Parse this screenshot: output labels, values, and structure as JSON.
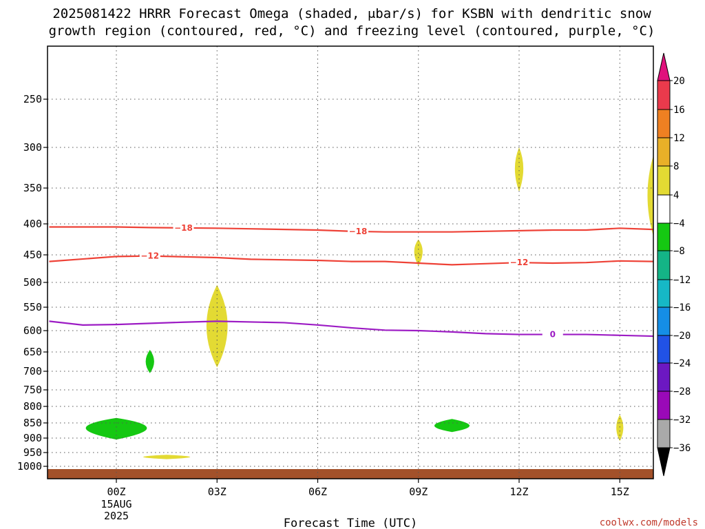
{
  "chart_data": {
    "type": "time-height cross section",
    "title_line1": "2025081422 HRRR Forecast Omega (shaded, μbar/s) for KSBN with dendritic snow",
    "title_line2": "growth region (contoured, red, °C) and freezing level (contoured, purple, °C)",
    "xlabel": "Forecast Time (UTC)",
    "credit": "coolwx.com/models",
    "y_ticks": [
      250,
      300,
      350,
      400,
      450,
      500,
      550,
      600,
      650,
      700,
      750,
      800,
      850,
      900,
      950,
      1000
    ],
    "x_ticks": [
      {
        "hour": 0,
        "label": "00Z",
        "sub1": "15AUG",
        "sub2": "2025"
      },
      {
        "hour": 3,
        "label": "03Z"
      },
      {
        "hour": 6,
        "label": "06Z"
      },
      {
        "hour": 9,
        "label": "09Z"
      },
      {
        "hour": 12,
        "label": "12Z"
      },
      {
        "hour": 15,
        "label": "15Z"
      }
    ],
    "xlim": [
      -2,
      16
    ],
    "ylim": [
      1040,
      200
    ],
    "grid": true,
    "colorbar": {
      "labels": [
        "20",
        "16",
        "12",
        "8",
        "4",
        "−4",
        "−8",
        "−12",
        "−16",
        "−20",
        "−24",
        "−28",
        "−32",
        "−36"
      ],
      "colors": [
        "#ea3a4c",
        "#ef8022",
        "#e9b028",
        "#e3da33",
        "#ffffff",
        "#15c812",
        "#14b486",
        "#16b8c6",
        "#158ee6",
        "#2152e6",
        "#6c18c2",
        "#9a09b8",
        "#a9a9a9"
      ],
      "top_arrow_color": "#e0117c",
      "bottom_arrow_color": "#000000"
    },
    "contours": [
      {
        "name": "-18",
        "label": "−18",
        "color": "#ee4136",
        "points": [
          [
            -2,
            405
          ],
          [
            0,
            405
          ],
          [
            1,
            406
          ],
          [
            3,
            407
          ],
          [
            4,
            408
          ],
          [
            6,
            410
          ],
          [
            7,
            412
          ],
          [
            8,
            413
          ],
          [
            9,
            413
          ],
          [
            10,
            413
          ],
          [
            11,
            412
          ],
          [
            13,
            410
          ],
          [
            14,
            410
          ],
          [
            15,
            407
          ],
          [
            16,
            409
          ]
        ],
        "labels_at": [
          2,
          7.2
        ]
      },
      {
        "name": "-12",
        "label": "−12",
        "color": "#ee4136",
        "points": [
          [
            -2,
            462
          ],
          [
            0,
            453
          ],
          [
            1,
            452
          ],
          [
            3,
            455
          ],
          [
            4,
            458
          ],
          [
            6,
            460
          ],
          [
            7,
            462
          ],
          [
            8,
            462
          ],
          [
            9,
            465
          ],
          [
            10,
            468
          ],
          [
            11,
            466
          ],
          [
            12,
            464
          ],
          [
            13,
            465
          ],
          [
            14,
            464
          ],
          [
            15,
            461
          ],
          [
            16,
            462
          ]
        ],
        "labels_at": [
          1,
          12
        ]
      },
      {
        "name": "0",
        "label": "0",
        "color": "#9c1bc4",
        "points": [
          [
            -2,
            580
          ],
          [
            -1,
            588
          ],
          [
            0,
            587
          ],
          [
            2,
            582
          ],
          [
            3,
            580
          ],
          [
            5,
            583
          ],
          [
            6,
            588
          ],
          [
            7,
            594
          ],
          [
            8,
            599
          ],
          [
            9,
            600
          ],
          [
            10,
            603
          ],
          [
            11,
            607
          ],
          [
            12,
            609
          ],
          [
            13,
            609
          ],
          [
            14,
            609
          ],
          [
            15,
            611
          ],
          [
            16,
            613
          ]
        ],
        "labels_at": [
          13
        ]
      }
    ],
    "shaded_regions": [
      {
        "name": "yellow-near-12z-320",
        "color": "#e3da33",
        "center": [
          12,
          325
        ],
        "halfwidth_hours": 0.18,
        "p_top": 300,
        "p_bottom": 355
      },
      {
        "name": "yellow-near-09z-440",
        "color": "#e3da33",
        "center": [
          9,
          443
        ],
        "halfwidth_hours": 0.18,
        "p_top": 425,
        "p_bottom": 470
      },
      {
        "name": "yellow-near-03z-580",
        "color": "#e3da33",
        "center": [
          3,
          590
        ],
        "halfwidth_hours": 0.45,
        "p_top": 505,
        "p_bottom": 690
      },
      {
        "name": "yellow-near-15z-860",
        "color": "#e3da33",
        "center": [
          15,
          865
        ],
        "halfwidth_hours": 0.15,
        "p_top": 825,
        "p_bottom": 910
      },
      {
        "name": "yellow-near-01z-965",
        "color": "#e3da33",
        "center": [
          1.5,
          966
        ],
        "halfwidth_hours": 1.0,
        "p_top": 958,
        "p_bottom": 974
      },
      {
        "name": "yellow-right-edge-350",
        "color": "#e3da33",
        "center": [
          16,
          360
        ],
        "halfwidth_hours": 0.25,
        "p_top": 310,
        "p_bottom": 420
      },
      {
        "name": "green-near-01z-675",
        "color": "#15c812",
        "center": [
          1,
          675
        ],
        "halfwidth_hours": 0.18,
        "p_top": 645,
        "p_bottom": 705
      },
      {
        "name": "green-near-00z-865",
        "color": "#15c812",
        "center": [
          0,
          865
        ],
        "halfwidth_hours": 1.3,
        "p_top": 835,
        "p_bottom": 905
      },
      {
        "name": "green-near-10z-860",
        "color": "#15c812",
        "center": [
          10,
          860
        ],
        "halfwidth_hours": 0.75,
        "p_top": 838,
        "p_bottom": 880
      }
    ],
    "surface_color": "#a3512a",
    "surface_pressure": 980
  }
}
